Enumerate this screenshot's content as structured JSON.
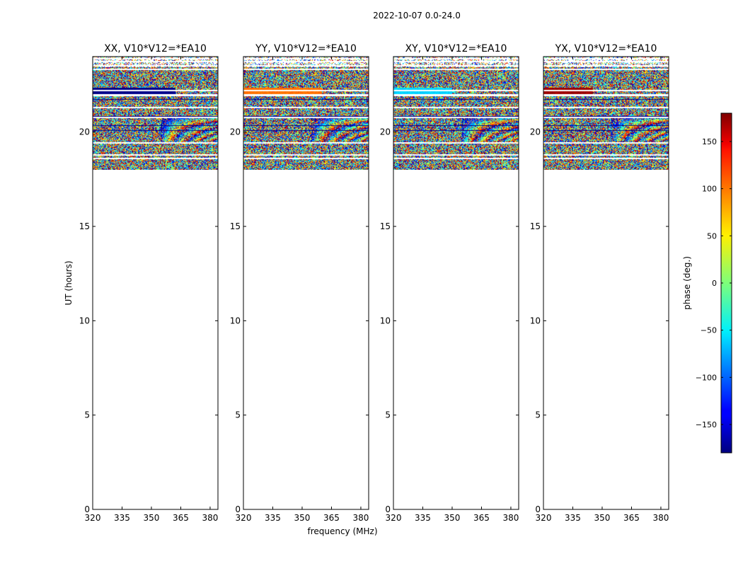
{
  "chart_data": {
    "type": "heatmap",
    "suptitle": "2022-10-07 0.0-24.0",
    "xlabel": "frequency (MHz)",
    "ylabel": "UT (hours)",
    "xlim": [
      320,
      384
    ],
    "ylim": [
      0,
      24
    ],
    "xticks": [
      320,
      335,
      350,
      365,
      380
    ],
    "yticks": [
      0,
      5,
      10,
      15,
      20
    ],
    "data_ut_range": [
      18.0,
      24.0
    ],
    "panels": [
      {
        "title": "XX, V10*V12=*EA10",
        "flag_band": {
          "ut": [
            21.95,
            22.35
          ],
          "phase": -178,
          "freq_end": 362
        }
      },
      {
        "title": "YY, V10*V12=*EA10",
        "flag_band": {
          "ut": [
            21.95,
            22.35
          ],
          "phase": 95,
          "freq_end": 360
        }
      },
      {
        "title": "XY, V10*V12=*EA10",
        "flag_band": {
          "ut": [
            21.95,
            22.35
          ],
          "phase": -60,
          "freq_end": 350
        }
      },
      {
        "title": "YX, V10*V12=*EA10",
        "flag_band": {
          "ut": [
            21.95,
            22.35
          ],
          "phase": 170,
          "freq_end": 345
        }
      }
    ],
    "colorbar": {
      "label": "phase (deg.)",
      "range": [
        -180,
        180
      ],
      "ticks": [
        -150,
        -100,
        -50,
        0,
        50,
        100,
        150
      ],
      "tick_labels": [
        "−150",
        "−100",
        "−50",
        "0",
        "50",
        "100",
        "150"
      ],
      "colormap": "jet"
    }
  }
}
